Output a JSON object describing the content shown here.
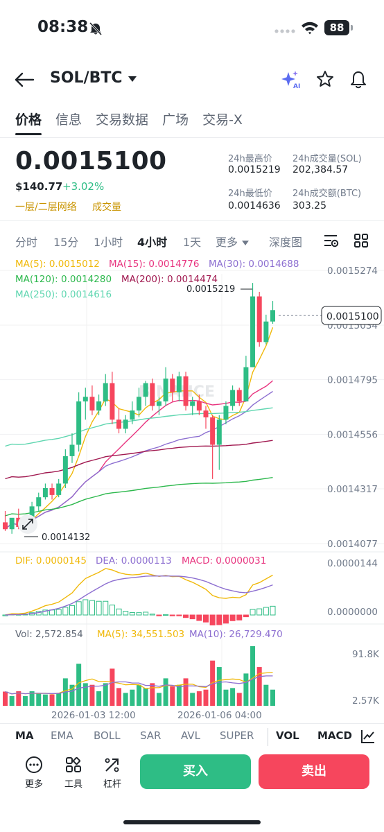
{
  "status_bar": {
    "time": "08:38",
    "battery": "88"
  },
  "header": {
    "pair": "SOL/BTC"
  },
  "tabs": [
    {
      "label": "价格"
    },
    {
      "label": "信息"
    },
    {
      "label": "交易数据"
    },
    {
      "label": "广场"
    },
    {
      "label": "交易-X"
    }
  ],
  "ticker": {
    "price": "0.0015100",
    "usd": "$140.77",
    "change": "+3.02%",
    "tag_layer": "一层/二层网络",
    "tag_volume": "成交量",
    "high_label": "24h最高价",
    "high_value": "0.0015219",
    "vol_sol_label": "24h成交量(SOL)",
    "vol_sol_value": "202,384.57",
    "low_label": "24h最低价",
    "low_value": "0.0014636",
    "vol_btc_label": "24h成交额(BTC)",
    "vol_btc_value": "303.25"
  },
  "intervals": [
    {
      "label": "分时"
    },
    {
      "label": "15分"
    },
    {
      "label": "1小时"
    },
    {
      "label": "4小时"
    },
    {
      "label": "1天"
    },
    {
      "label": "更多"
    },
    {
      "label": "深度图"
    }
  ],
  "ma_legend": {
    "ma5": "MA(5): 0.0015012",
    "ma15": "MA(15): 0.0014776",
    "ma30": "MA(30): 0.0014688",
    "ma120": "MA(120): 0.0014280",
    "ma200": "MA(200): 0.0014474",
    "ma250": "MA(250): 0.0014616"
  },
  "colors": {
    "up": "#2ebd85",
    "down": "#f6465d",
    "ma5": "#f0b90b",
    "ma15": "#e8347f",
    "ma30": "#8d6fd1",
    "ma120": "#2db84d",
    "ma200": "#a0184f",
    "ma250": "#5fd6b0"
  },
  "chart_data": {
    "type": "candlestick",
    "price_axis": [
      "0.0015274",
      "0.0015034",
      "0.0014795",
      "0.0014556",
      "0.0014317",
      "0.0014077"
    ],
    "time_axis": [
      "2026-01-03 12:00",
      "2026-01-06 04:00"
    ],
    "max_label": "0.0015219",
    "min_label": "0.0014132",
    "current_price_tag": "0.0015100",
    "watermark": "BINANCE",
    "candles": [
      {
        "o": 0.001417,
        "h": 0.001422,
        "c": 0.001414,
        "l": 0.0014132
      },
      {
        "o": 0.001414,
        "h": 0.001418,
        "c": 0.001419,
        "l": 0.001412
      },
      {
        "o": 0.001419,
        "h": 0.001423,
        "c": 0.001415,
        "l": 0.001414
      },
      {
        "o": 0.001415,
        "h": 0.00142,
        "c": 0.001418,
        "l": 0.001414
      },
      {
        "o": 0.001418,
        "h": 0.001426,
        "c": 0.001424,
        "l": 0.001417
      },
      {
        "o": 0.001424,
        "h": 0.00143,
        "c": 0.001428,
        "l": 0.001422
      },
      {
        "o": 0.001428,
        "h": 0.001434,
        "c": 0.001432,
        "l": 0.001427
      },
      {
        "o": 0.001432,
        "h": 0.001434,
        "c": 0.001429,
        "l": 0.001427
      },
      {
        "o": 0.001429,
        "h": 0.001436,
        "c": 0.001434,
        "l": 0.001428
      },
      {
        "o": 0.001434,
        "h": 0.001449,
        "c": 0.001446,
        "l": 0.001432
      },
      {
        "o": 0.001446,
        "h": 0.001456,
        "c": 0.001451,
        "l": 0.001443
      },
      {
        "o": 0.001451,
        "h": 0.001474,
        "c": 0.00147,
        "l": 0.001448
      },
      {
        "o": 0.00147,
        "h": 0.001476,
        "c": 0.001472,
        "l": 0.001462
      },
      {
        "o": 0.001472,
        "h": 0.001477,
        "c": 0.001466,
        "l": 0.001464
      },
      {
        "o": 0.001466,
        "h": 0.001473,
        "c": 0.00147,
        "l": 0.001464
      },
      {
        "o": 0.00147,
        "h": 0.001482,
        "c": 0.001478,
        "l": 0.001468
      },
      {
        "o": 0.001478,
        "h": 0.001483,
        "c": 0.001462,
        "l": 0.00146
      },
      {
        "o": 0.001462,
        "h": 0.001467,
        "c": 0.001458,
        "l": 0.001456
      },
      {
        "o": 0.001458,
        "h": 0.001464,
        "c": 0.001462,
        "l": 0.001456
      },
      {
        "o": 0.001462,
        "h": 0.00147,
        "c": 0.001466,
        "l": 0.00146
      },
      {
        "o": 0.001466,
        "h": 0.001476,
        "c": 0.001472,
        "l": 0.001463
      },
      {
        "o": 0.001472,
        "h": 0.001479,
        "c": 0.001478,
        "l": 0.001468
      },
      {
        "o": 0.001478,
        "h": 0.00148,
        "c": 0.001468,
        "l": 0.001466
      },
      {
        "o": 0.001468,
        "h": 0.001472,
        "c": 0.00147,
        "l": 0.001464
      },
      {
        "o": 0.00147,
        "h": 0.001485,
        "c": 0.00148,
        "l": 0.001468
      },
      {
        "o": 0.00148,
        "h": 0.001482,
        "c": 0.001474,
        "l": 0.00147
      },
      {
        "o": 0.001474,
        "h": 0.001483,
        "c": 0.001481,
        "l": 0.00147
      },
      {
        "o": 0.001481,
        "h": 0.001483,
        "c": 0.001468,
        "l": 0.001466
      },
      {
        "o": 0.001468,
        "h": 0.001472,
        "c": 0.00147,
        "l": 0.001464
      },
      {
        "o": 0.00147,
        "h": 0.001473,
        "c": 0.001466,
        "l": 0.001464
      },
      {
        "o": 0.001466,
        "h": 0.001468,
        "c": 0.001463,
        "l": 0.001458
      },
      {
        "o": 0.001463,
        "h": 0.001464,
        "c": 0.001451,
        "l": 0.001436
      },
      {
        "o": 0.001451,
        "h": 0.001464,
        "c": 0.001462,
        "l": 0.00144
      },
      {
        "o": 0.001462,
        "h": 0.00147,
        "c": 0.001468,
        "l": 0.00146
      },
      {
        "o": 0.001468,
        "h": 0.001477,
        "c": 0.001475,
        "l": 0.001466
      },
      {
        "o": 0.001475,
        "h": 0.001476,
        "c": 0.00147,
        "l": 0.001468
      },
      {
        "o": 0.00147,
        "h": 0.00149,
        "c": 0.001485,
        "l": 0.00147
      },
      {
        "o": 0.001485,
        "h": 0.0015219,
        "c": 0.001516,
        "l": 0.001485
      },
      {
        "o": 0.001516,
        "h": 0.001518,
        "c": 0.001496,
        "l": 0.001494
      },
      {
        "o": 0.001496,
        "h": 0.001508,
        "c": 0.001505,
        "l": 0.001495
      },
      {
        "o": 0.001505,
        "h": 0.001514,
        "c": 0.00151,
        "l": 0.001504
      }
    ],
    "macd": {
      "legend_dif": "DIF: 0.0000145",
      "legend_dea": "DEA: 0.0000113",
      "legend_macd": "MACD: 0.0000031",
      "axis": [
        "0.0000144",
        "0.0000000"
      ]
    },
    "volume": {
      "legend_vol": "Vol: 2,572.854",
      "legend_ma5": "MA(5): 34,551.503",
      "legend_ma10": "MA(10): 26,729.470",
      "axis": [
        "91.8K",
        "2.57K"
      ]
    }
  },
  "indicators": [
    {
      "label": "MA"
    },
    {
      "label": "EMA"
    },
    {
      "label": "BOLL"
    },
    {
      "label": "SAR"
    },
    {
      "label": "AVL"
    },
    {
      "label": "SUPER"
    },
    {
      "label": "VOL"
    },
    {
      "label": "MACD"
    }
  ],
  "bottom_tools": [
    {
      "label": "更多"
    },
    {
      "label": "工具"
    },
    {
      "label": "杠杆"
    }
  ],
  "actions": {
    "buy": "买入",
    "sell": "卖出"
  }
}
